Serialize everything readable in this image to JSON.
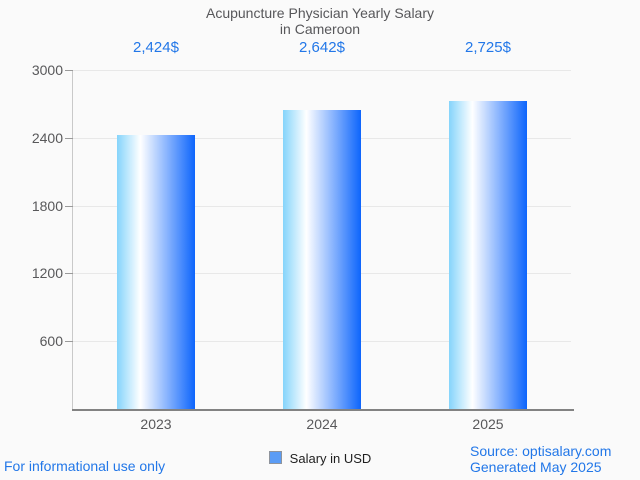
{
  "title": {
    "line1": "Acupuncture Physician Yearly Salary",
    "line2": "in Cameroon"
  },
  "chart_data": {
    "type": "bar",
    "title": "Acupuncture Physician Yearly Salary in Cameroon",
    "categories": [
      "2023",
      "2024",
      "2025"
    ],
    "values": [
      2424,
      2642,
      2725
    ],
    "value_labels": [
      "2,424$",
      "2,642$",
      "2,725$"
    ],
    "series_name": "Salary in USD",
    "xlabel": "",
    "ylabel": "",
    "ylim": [
      0,
      3000
    ],
    "yticks": [
      600,
      1200,
      1800,
      2400,
      3000
    ],
    "grid": true,
    "legend_position": "bottom",
    "bar_gradient": [
      "#85d4fb",
      "#ffffff",
      "#0d65fc"
    ]
  },
  "legend": {
    "label": "Salary in USD",
    "marker_fill": "#5b9cf5",
    "marker_border": "#8f949c"
  },
  "footer": {
    "disclaimer": "For informational use only",
    "source": "Source: optisalary.com",
    "generated": "Generated May 2025"
  },
  "colors": {
    "accent_text": "#2277e8",
    "axis_text": "#58585a",
    "title_text": "#57575a",
    "gridline": "#e8e8e8",
    "axis_line": "#828282",
    "background": "#fafafa"
  }
}
